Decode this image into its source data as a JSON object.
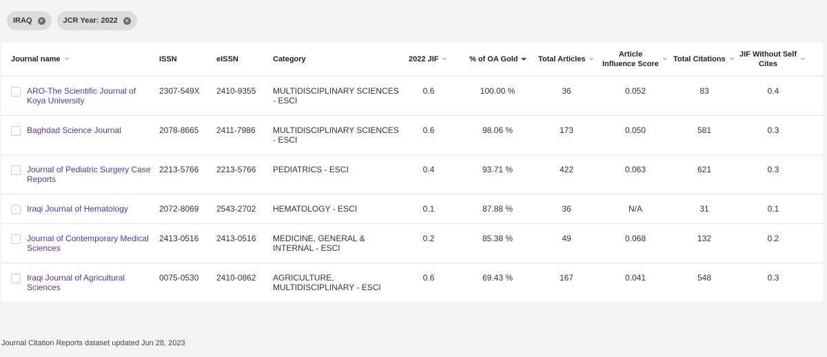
{
  "filters": [
    {
      "label": "IRAQ"
    },
    {
      "label": "JCR Year: 2022"
    }
  ],
  "columns": {
    "journal": "Journal name",
    "issn": "ISSN",
    "eissn": "eISSN",
    "category": "Category",
    "jif": "2022 JIF",
    "oa": "% of OA Gold",
    "articles": "Total Articles",
    "ais_l1": "Article",
    "ais_l2": "Influence Score",
    "citations": "Total Citations",
    "jifws_l1": "JIF Without Self",
    "jifws_l2": "Cites"
  },
  "rows": [
    {
      "name1": "ARO-The Scientific Journal of",
      "name2": "Koya University",
      "issn": "2307-549X",
      "eissn": "2410-9355",
      "cat1": "MULTIDISCIPLINARY SCIENCES",
      "cat2": "- ESCI",
      "jif": "0.6",
      "oa": "100.00 %",
      "articles": "36",
      "ais": "0.052",
      "citations": "83",
      "jifws": "0.4"
    },
    {
      "name1": "Baghdad Science Journal",
      "name2": "",
      "issn": "2078-8665",
      "eissn": "2411-7986",
      "cat1": "MULTIDISCIPLINARY SCIENCES",
      "cat2": "- ESCI",
      "jif": "0.6",
      "oa": "98.06 %",
      "articles": "173",
      "ais": "0.050",
      "citations": "581",
      "jifws": "0.3"
    },
    {
      "name1": "Journal of Pediatric Surgery Case",
      "name2": "Reports",
      "issn": "2213-5766",
      "eissn": "2213-5766",
      "cat1": "PEDIATRICS - ESCI",
      "cat2": "",
      "jif": "0.4",
      "oa": "93.71 %",
      "articles": "422",
      "ais": "0.063",
      "citations": "621",
      "jifws": "0.3"
    },
    {
      "name1": "Iraqi Journal of Hematology",
      "name2": "",
      "issn": "2072-8069",
      "eissn": "2543-2702",
      "cat1": "HEMATOLOGY - ESCI",
      "cat2": "",
      "jif": "0.1",
      "oa": "87.88 %",
      "articles": "36",
      "ais": "N/A",
      "citations": "31",
      "jifws": "0.1"
    },
    {
      "name1": "Journal of Contemporary Medical",
      "name2": "Sciences",
      "issn": "2413-0516",
      "eissn": "2413-0516",
      "cat1": "MEDICINE, GENERAL &",
      "cat2": "INTERNAL - ESCI",
      "jif": "0.2",
      "oa": "85.38 %",
      "articles": "49",
      "ais": "0.068",
      "citations": "132",
      "jifws": "0.2"
    },
    {
      "name1": "Iraqi Journal of Agricultural",
      "name2": "Sciences",
      "issn": "0075-0530",
      "eissn": "2410-0862",
      "cat1": "AGRICULTURE,",
      "cat2": "MULTIDISCIPLINARY - ESCI",
      "jif": "0.6",
      "oa": "69.43 %",
      "articles": "167",
      "ais": "0.041",
      "citations": "548",
      "jifws": "0.3"
    }
  ],
  "footer": "Journal Citation Reports dataset updated Jun 28, 2023",
  "colors": {
    "link": "#5a34a6",
    "sort_active": "#5a2d91"
  },
  "icons": {
    "chip_remove": "close-circle-icon",
    "sort": "caret-down-icon"
  }
}
